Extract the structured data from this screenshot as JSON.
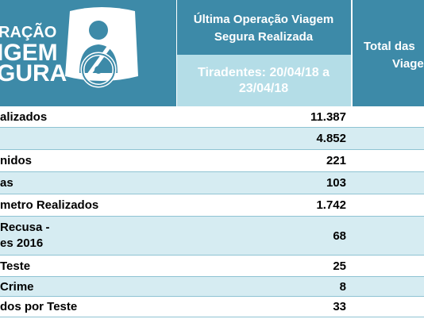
{
  "logo": {
    "line1": "RAÇÃO",
    "line2": "IGEM",
    "line3": "GURA",
    "icon": "steering-wheel-driver-icon"
  },
  "header": {
    "col1_title": "Última Operação Viagem Segura Realizada",
    "col1_sub": "Tiradentes: 20/04/18 a 23/04/18",
    "col2_line1": "Total das",
    "col2_line2": "Viage"
  },
  "rows": [
    {
      "label": "alizados",
      "value": "11.387"
    },
    {
      "label": "",
      "value": "4.852"
    },
    {
      "label": "nidos",
      "value": "221"
    },
    {
      "label": "as",
      "value": "103"
    },
    {
      "label": "metro Realizados",
      "value": "1.742"
    },
    {
      "label": "Recusa -",
      "label2": "es 2016",
      "value": "68"
    },
    {
      "label": "Teste",
      "value": "25"
    },
    {
      "label": "Crime",
      "value": "8"
    },
    {
      "label": "dos por Teste",
      "value": "33"
    }
  ],
  "colors": {
    "header_dark": "#3d8aa8",
    "header_light": "#b4dde7",
    "row_shade": "#d6ecf2",
    "row_line": "#8fc3d3"
  }
}
